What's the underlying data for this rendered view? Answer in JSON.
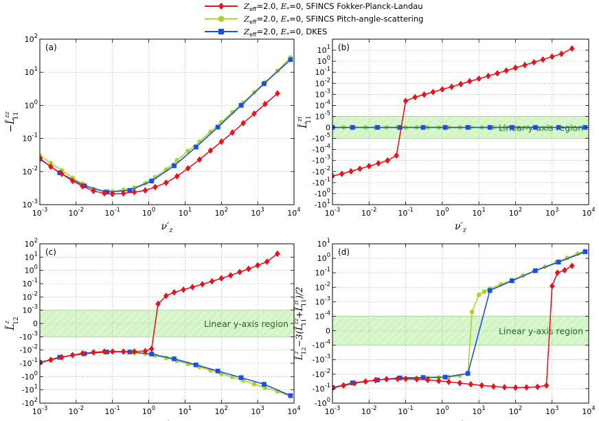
{
  "legend": [
    {
      "math": "Z_eff=2.0, E_*=0,",
      "label": "SFINCS Fokker-Planck-Landau",
      "color": "#e8141c",
      "marker": "diamond"
    },
    {
      "math": "Z_eff=2.0, E_*=0,",
      "label": "SFINCS Pitch-angle-scattering",
      "color": "#a8d42c",
      "marker": "circle"
    },
    {
      "math": "Z_eff=2.0, E_*=0,",
      "label": "DKES",
      "color": "#1a4fe6",
      "marker": "square"
    }
  ],
  "colors": {
    "red": "#e8141c",
    "green": "#a8d42c",
    "blue": "#1a4fe6",
    "region_fill": "#d9f7cf",
    "region_edge": "#9ee08a"
  },
  "chart_data": [
    {
      "type": "line",
      "panel": "(a)",
      "ylabel": "−L̃ zz 11",
      "xlabel": "ν′z",
      "xscale": "log",
      "yscale": "log",
      "xlim": [
        0.001,
        10000
      ],
      "ylim": [
        0.001,
        100
      ],
      "xticks": [
        "10^-3",
        "10^-2",
        "10^-1",
        "10^0",
        "10^1",
        "10^2",
        "10^3",
        "10^4"
      ],
      "yticks": [
        "10^-3",
        "10^-2",
        "10^-1",
        "10^0",
        "10^1",
        "10^2"
      ],
      "series": [
        {
          "name": "SFINCS Fokker-Planck-Landau",
          "color": "red",
          "x": [
            0.001,
            0.002,
            0.004,
            0.008,
            0.015,
            0.03,
            0.06,
            0.1,
            0.2,
            0.4,
            0.8,
            1.5,
            3,
            6,
            12,
            25,
            50,
            100,
            200,
            400,
            800,
            1600,
            3500
          ],
          "y": [
            0.025,
            0.014,
            0.0085,
            0.0052,
            0.0036,
            0.0026,
            0.0022,
            0.0021,
            0.0022,
            0.0024,
            0.0027,
            0.0034,
            0.0046,
            0.0072,
            0.0125,
            0.023,
            0.043,
            0.08,
            0.15,
            0.29,
            0.56,
            1.1,
            2.3
          ]
        },
        {
          "name": "SFINCS Pitch-angle-scattering",
          "color": "green",
          "x": [
            0.001,
            0.002,
            0.004,
            0.008,
            0.015,
            0.03,
            0.06,
            0.1,
            0.2,
            0.4,
            0.8,
            1.5,
            3,
            6,
            12,
            25,
            50,
            100,
            200,
            400,
            800,
            1600,
            3500,
            8000
          ],
          "y": [
            0.031,
            0.018,
            0.011,
            0.0065,
            0.0043,
            0.003,
            0.0025,
            0.0025,
            0.0028,
            0.0033,
            0.0044,
            0.0068,
            0.0115,
            0.022,
            0.042,
            0.08,
            0.16,
            0.31,
            0.62,
            1.2,
            2.5,
            5.0,
            11,
            28
          ]
        },
        {
          "name": "DKES",
          "color": "blue",
          "x": [
            0.001,
            0.0035,
            0.017,
            0.07,
            0.3,
            1.2,
            5,
            20,
            80,
            350,
            1500,
            8000
          ],
          "y": [
            0.024,
            0.0092,
            0.0037,
            0.0024,
            0.0027,
            0.0052,
            0.015,
            0.055,
            0.22,
            1.0,
            4.5,
            24
          ]
        }
      ]
    },
    {
      "type": "line",
      "panel": "(b)",
      "ylabel": "L̃ zi 11",
      "xlabel": "ν′z",
      "xscale": "log",
      "yscale": "symlog",
      "linthresh": 1e-05,
      "xlim": [
        0.001,
        10000
      ],
      "ylim": [
        -10,
        100
      ],
      "yticks": [
        "10^1",
        "10^0",
        "10^-1",
        "10^-2",
        "10^-3",
        "10^-4",
        "10^-5",
        "0",
        "-10^-5",
        "-10^-4",
        "-10^-3",
        "-10^-2",
        "-10^-1",
        "-10^0",
        "-10^1"
      ],
      "region_text": "Linear y-axis region",
      "series": [
        {
          "name": "SFINCS Fokker-Planck-Landau",
          "color": "red",
          "x": [
            0.001,
            0.0018,
            0.0032,
            0.0056,
            0.01,
            0.018,
            0.032,
            0.056,
            0.1,
            0.18,
            0.32,
            0.56,
            1,
            1.8,
            3.2,
            5.6,
            10,
            18,
            32,
            56,
            100,
            180,
            320,
            560,
            1000,
            1800,
            3500
          ],
          "y": [
            -0.025,
            -0.016,
            -0.0095,
            -0.0056,
            -0.0032,
            -0.0018,
            -0.001,
            -0.00035,
            0.00025,
            0.00055,
            0.00095,
            0.0016,
            0.0028,
            0.0048,
            0.0085,
            0.015,
            0.026,
            0.046,
            0.08,
            0.14,
            0.25,
            0.45,
            0.8,
            1.4,
            2.6,
            4.6,
            14
          ]
        },
        {
          "name": "SFINCS Pitch-angle-scattering",
          "color": "green",
          "x": [
            0.001,
            0.002,
            0.004,
            0.008,
            0.015,
            0.03,
            0.06,
            0.1,
            0.2,
            0.4,
            0.8,
            1.5,
            3,
            6,
            12,
            25,
            50,
            100,
            200,
            400,
            800,
            1600,
            3500,
            8000
          ],
          "y": [
            0,
            0,
            0,
            0,
            0,
            0,
            0,
            0,
            0,
            0,
            0,
            0,
            0,
            0,
            0,
            0,
            0,
            0,
            0,
            0,
            0,
            0,
            0,
            0
          ]
        },
        {
          "name": "DKES",
          "color": "blue",
          "x": [
            0.001,
            0.0035,
            0.017,
            0.07,
            0.3,
            1.2,
            5,
            20,
            80,
            350,
            1500,
            8000
          ],
          "y": [
            0,
            0,
            0,
            0,
            0,
            0,
            0,
            0,
            0,
            0,
            0,
            0
          ]
        }
      ]
    },
    {
      "type": "line",
      "panel": "(c)",
      "ylabel": "L̃ z 12",
      "xlabel": "ν′z",
      "xscale": "log",
      "yscale": "symlog",
      "linthresh": 0.001,
      "xlim": [
        0.001,
        10000
      ],
      "ylim": [
        -100,
        100
      ],
      "yticks": [
        "10^2",
        "10^1",
        "10^0",
        "10^-1",
        "10^-2",
        "10^-3",
        "0",
        "-10^-3",
        "-10^-2",
        "-10^-1",
        "-10^0",
        "-10^1",
        "-10^2"
      ],
      "region_text": "Linear y-axis region",
      "series": [
        {
          "name": "SFINCS Fokker-Planck-Landau",
          "color": "red",
          "x": [
            0.001,
            0.002,
            0.004,
            0.008,
            0.015,
            0.03,
            0.06,
            0.1,
            0.2,
            0.4,
            0.8,
            1.2,
            1.8,
            3,
            5,
            9,
            16,
            30,
            55,
            100,
            180,
            320,
            560,
            1000,
            1800,
            3500
          ],
          "y": [
            -0.09,
            -0.055,
            -0.035,
            -0.024,
            -0.018,
            -0.015,
            -0.013,
            -0.013,
            -0.013,
            -0.013,
            -0.012,
            -0.008,
            0.003,
            0.012,
            0.022,
            0.035,
            0.055,
            0.09,
            0.15,
            0.25,
            0.42,
            0.75,
            1.3,
            2.4,
            4.5,
            18
          ]
        },
        {
          "name": "SFINCS Pitch-angle-scattering",
          "color": "green",
          "x": [
            0.001,
            0.002,
            0.004,
            0.008,
            0.015,
            0.03,
            0.06,
            0.1,
            0.2,
            0.4,
            0.8,
            1.5,
            3,
            6,
            12,
            25,
            50,
            100,
            200,
            400,
            800,
            1600,
            3500,
            8000
          ],
          "y": [
            -0.09,
            -0.055,
            -0.035,
            -0.024,
            -0.018,
            -0.015,
            -0.013,
            -0.013,
            -0.014,
            -0.016,
            -0.019,
            -0.026,
            -0.04,
            -0.065,
            -0.11,
            -0.19,
            -0.34,
            -0.62,
            -1.1,
            -2.0,
            -3.7,
            -7.0,
            -13,
            -30
          ]
        },
        {
          "name": "DKES",
          "color": "blue",
          "x": [
            0.001,
            0.0035,
            0.017,
            0.07,
            0.3,
            1.2,
            5,
            20,
            80,
            350,
            1500,
            8000
          ],
          "y": [
            -0.085,
            -0.035,
            -0.019,
            -0.014,
            -0.014,
            -0.02,
            -0.046,
            -0.13,
            -0.38,
            -1.2,
            -3.8,
            -27
          ]
        }
      ]
    },
    {
      "type": "line",
      "panel": "(d)",
      "ylabel": "L̃ z 12 − 3(L̃ zz 11 + L̃ zi 11)/2",
      "xlabel": "ν′z",
      "xscale": "log",
      "yscale": "symlog",
      "linthresh": 0.0001,
      "xlim": [
        0.001,
        10000
      ],
      "ylim": [
        -1,
        10
      ],
      "yticks": [
        "10^1",
        "10^0",
        "10^-1",
        "10^-2",
        "10^-3",
        "10^-4",
        "0",
        "-10^-4",
        "-10^-3",
        "-10^-2",
        "-10^-1",
        "-10^0"
      ],
      "region_text": "Linear y-axis region",
      "series": [
        {
          "name": "SFINCS Fokker-Planck-Landau",
          "color": "red",
          "x": [
            0.001,
            0.002,
            0.004,
            0.008,
            0.015,
            0.03,
            0.06,
            0.1,
            0.2,
            0.4,
            0.8,
            1.5,
            3,
            6,
            12,
            25,
            50,
            100,
            200,
            400,
            700,
            1000,
            1400,
            2200,
            3500
          ],
          "y": [
            -0.09,
            -0.06,
            -0.042,
            -0.032,
            -0.026,
            -0.022,
            -0.021,
            -0.021,
            -0.022,
            -0.025,
            -0.029,
            -0.034,
            -0.041,
            -0.05,
            -0.06,
            -0.071,
            -0.08,
            -0.085,
            -0.082,
            -0.075,
            -0.06,
            0.012,
            0.1,
            0.15,
            0.3
          ]
        },
        {
          "name": "SFINCS Pitch-angle-scattering",
          "color": "green",
          "x": [
            0.001,
            0.002,
            0.004,
            0.008,
            0.015,
            0.03,
            0.06,
            0.1,
            0.2,
            0.4,
            0.8,
            1.5,
            3,
            5,
            6.5,
            10,
            14,
            20,
            40,
            80,
            160,
            320,
            640,
            1300,
            2600,
            5000,
            8000
          ],
          "y": [
            -0.085,
            -0.06,
            -0.042,
            -0.032,
            -0.026,
            -0.022,
            -0.02,
            -0.019,
            -0.019,
            -0.018,
            -0.017,
            -0.016,
            -0.013,
            -0.008,
            0.0002,
            0.003,
            0.005,
            0.008,
            0.016,
            0.032,
            0.064,
            0.13,
            0.26,
            0.52,
            1.05,
            2.1,
            3.2
          ]
        },
        {
          "name": "DKES",
          "color": "blue",
          "x": [
            0.001,
            0.0035,
            0.017,
            0.07,
            0.3,
            1.2,
            5,
            20,
            80,
            350,
            1500,
            8000
          ],
          "y": [
            -0.085,
            -0.04,
            -0.025,
            -0.018,
            -0.017,
            -0.016,
            -0.009,
            0.006,
            0.028,
            0.14,
            0.55,
            2.8
          ]
        }
      ]
    }
  ]
}
